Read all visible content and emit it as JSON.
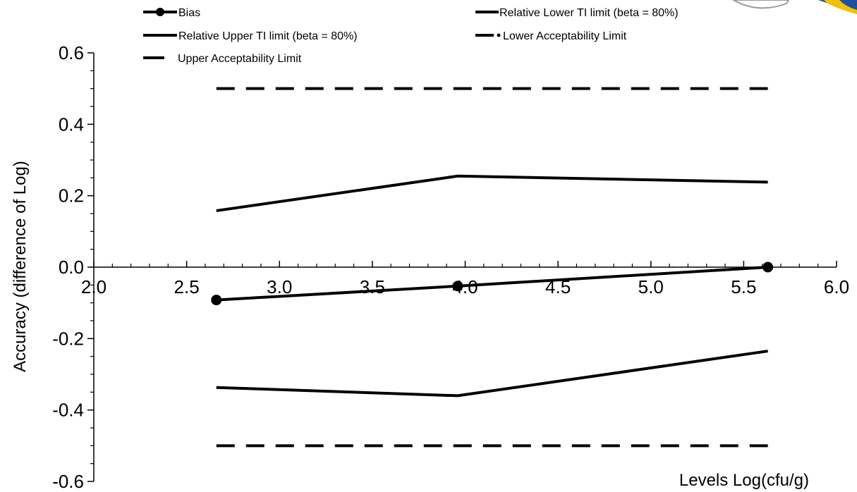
{
  "chart_data": {
    "type": "line",
    "title": "",
    "xlabel": "Levels Log(cfu/g)",
    "ylabel": "Accuracy (difference of  Log)",
    "xlim": [
      2.0,
      6.0
    ],
    "ylim": [
      -0.6,
      0.6
    ],
    "xticks": [
      "2.0",
      "2.5",
      "3.0",
      "3.5",
      "4.0",
      "4.5",
      "5.0",
      "5.5",
      "6.0"
    ],
    "yticks": [
      "0.6",
      "0.4",
      "0.2",
      "0.0",
      "-0.2",
      "-0.4",
      "-0.6"
    ],
    "legend_position": "top",
    "grid": false,
    "series": [
      {
        "name": "Bias",
        "style": "solid-marker",
        "x": [
          2.66,
          3.96,
          5.63
        ],
        "y": [
          -0.092,
          -0.053,
          0.0
        ]
      },
      {
        "name": "Relative Lower TI limit (beta = 80%)",
        "style": "solid",
        "x": [
          2.66,
          3.96,
          5.63
        ],
        "y": [
          -0.337,
          -0.36,
          -0.235
        ]
      },
      {
        "name": "Relative Upper TI limit (beta = 80%)",
        "style": "solid",
        "x": [
          2.66,
          3.96,
          5.63
        ],
        "y": [
          0.158,
          0.255,
          0.238
        ]
      },
      {
        "name": "Lower Acceptability Limit",
        "style": "dashed",
        "x": [
          2.66,
          5.63
        ],
        "y": [
          -0.5,
          -0.5
        ]
      },
      {
        "name": "Upper Acceptability Limit",
        "style": "dashed",
        "x": [
          2.66,
          5.63
        ],
        "y": [
          0.5,
          0.5
        ]
      }
    ]
  },
  "colors": {
    "line": "#000000",
    "badge_blue": "#1f4fa0",
    "badge_yellow": "#f2c200"
  }
}
